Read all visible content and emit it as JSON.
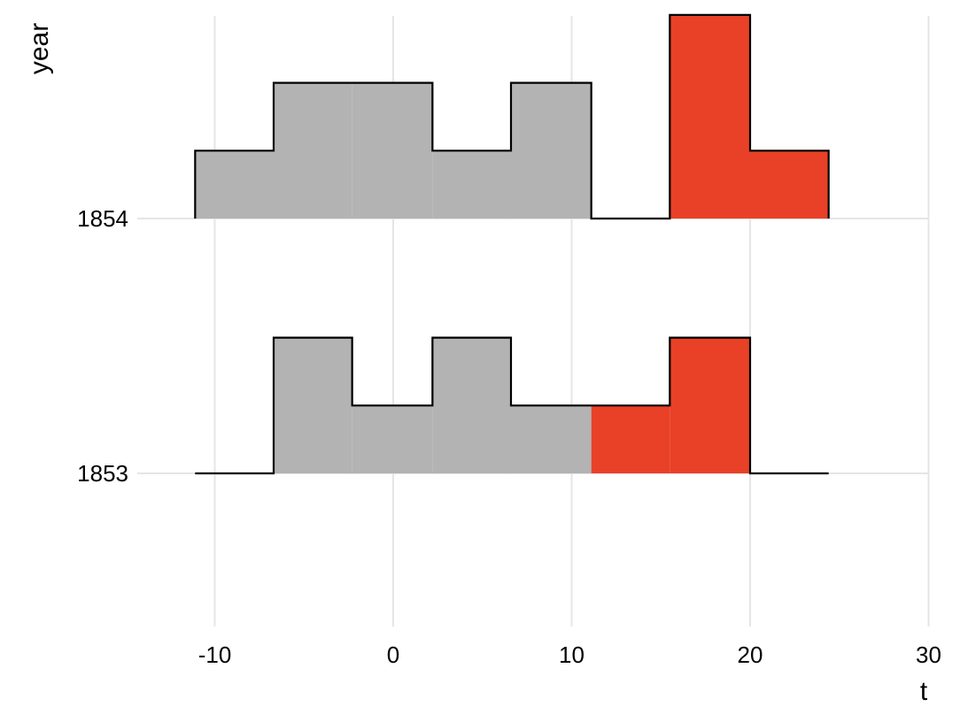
{
  "chart_data": {
    "type": "area",
    "xlabel": "t",
    "ylabel": "year",
    "xlim": [
      -15,
      30
    ],
    "x_ticks": [
      -10,
      0,
      10,
      20,
      30
    ],
    "x_tick_labels": [
      "-10",
      "0",
      "10",
      "20",
      "30"
    ],
    "y_categories": [
      "1853",
      "1854"
    ],
    "grid": true,
    "colors": {
      "grey": "#b3b3b3",
      "red": "#e84127",
      "outline": "#000000",
      "grid": "#e5e5e5"
    },
    "series": [
      {
        "year": "1853",
        "steps": [
          {
            "x0": -11.1,
            "x1": -6.7,
            "h": 0,
            "fill": "grey"
          },
          {
            "x0": -6.7,
            "x1": -2.3,
            "h": 2,
            "fill": "grey"
          },
          {
            "x0": -2.3,
            "x1": 2.2,
            "h": 1,
            "fill": "grey"
          },
          {
            "x0": 2.2,
            "x1": 6.6,
            "h": 2,
            "fill": "grey"
          },
          {
            "x0": 6.6,
            "x1": 11.1,
            "h": 1,
            "fill": "grey"
          },
          {
            "x0": 11.1,
            "x1": 15.5,
            "h": 1,
            "fill": "red"
          },
          {
            "x0": 15.5,
            "x1": 20.0,
            "h": 2,
            "fill": "red"
          },
          {
            "x0": 20.0,
            "x1": 24.4,
            "h": 0,
            "fill": "red"
          }
        ]
      },
      {
        "year": "1854",
        "steps": [
          {
            "x0": -11.1,
            "x1": -6.7,
            "h": 1,
            "fill": "grey"
          },
          {
            "x0": -6.7,
            "x1": -2.3,
            "h": 2,
            "fill": "grey"
          },
          {
            "x0": -2.3,
            "x1": 2.2,
            "h": 2,
            "fill": "grey"
          },
          {
            "x0": 2.2,
            "x1": 6.6,
            "h": 1,
            "fill": "grey"
          },
          {
            "x0": 6.6,
            "x1": 11.1,
            "h": 2,
            "fill": "grey"
          },
          {
            "x0": 11.1,
            "x1": 15.5,
            "h": 0,
            "fill": "grey"
          },
          {
            "x0": 15.5,
            "x1": 20.0,
            "h": 3,
            "fill": "red"
          },
          {
            "x0": 20.0,
            "x1": 24.4,
            "h": 1,
            "fill": "red"
          }
        ]
      }
    ]
  }
}
